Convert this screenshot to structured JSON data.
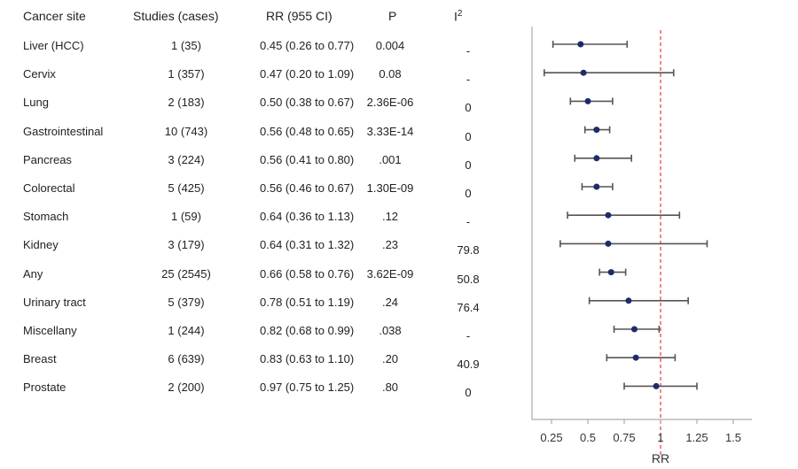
{
  "headers": {
    "site": "Cancer site",
    "studies": "Studies (cases)",
    "rr": "RR (955 CI)",
    "p": "P",
    "i2": "I",
    "i2_sup": "2"
  },
  "rows": [
    {
      "site": "Liver (HCC)",
      "studies": "1 (35)",
      "rr_ci": "0.45 (0.26 to 0.77)",
      "p": "0.004",
      "i2": "-"
    },
    {
      "site": "Cervix",
      "studies": "1 (357)",
      "rr_ci": "0.47 (0.20 to 1.09)",
      "p": "0.08",
      "i2": "-"
    },
    {
      "site": "Lung",
      "studies": "2 (183)",
      "rr_ci": "0.50 (0.38 to 0.67)",
      "p": "2.36E-06",
      "i2": "0"
    },
    {
      "site": "Gastrointestinal",
      "studies": "10 (743)",
      "rr_ci": "0.56 (0.48 to 0.65)",
      "p": "3.33E-14",
      "i2": "0"
    },
    {
      "site": "Pancreas",
      "studies": "3 (224)",
      "rr_ci": "0.56 (0.41 to 0.80)",
      "p": ".001",
      "i2": "0"
    },
    {
      "site": "Colorectal",
      "studies": "5 (425)",
      "rr_ci": "0.56 (0.46 to 0.67)",
      "p": "1.30E-09",
      "i2": "0"
    },
    {
      "site": "Stomach",
      "studies": "1 (59)",
      "rr_ci": "0.64 (0.36 to 1.13)",
      "p": ".12",
      "i2": "-"
    },
    {
      "site": "Kidney",
      "studies": "3 (179)",
      "rr_ci": "0.64 (0.31 to 1.32)",
      "p": ".23",
      "i2": "79.8"
    },
    {
      "site": "Any",
      "studies": "25 (2545)",
      "rr_ci": "0.66 (0.58 to 0.76)",
      "p": "3.62E-09",
      "i2": "50.8"
    },
    {
      "site": "Urinary tract",
      "studies": "5 (379)",
      "rr_ci": "0.78 (0.51 to 1.19)",
      "p": ".24",
      "i2": "76.4"
    },
    {
      "site": "Miscellany",
      "studies": "1 (244)",
      "rr_ci": "0.82 (0.68 to 0.99)",
      "p": ".038",
      "i2": "-"
    },
    {
      "site": "Breast",
      "studies": "6 (639)",
      "rr_ci": "0.83 (0.63 to 1.10)",
      "p": ".20",
      "i2": "40.9"
    },
    {
      "site": "Prostate",
      "studies": "2 (200)",
      "rr_ci": "0.97 (0.75 to 1.25)",
      "p": ".80",
      "i2": "0"
    }
  ],
  "chart_data": {
    "type": "forest",
    "xlabel": "RR",
    "xlim": [
      0.1,
      1.6
    ],
    "xticks": [
      0.25,
      0.5,
      0.75,
      1,
      1.25,
      1.5
    ],
    "xtick_labels": [
      "0.25",
      "0.5",
      "0.75",
      "1",
      "1.25",
      "1.5"
    ],
    "reference_line": 1,
    "categories": [
      "Liver (HCC)",
      "Cervix",
      "Lung",
      "Gastrointestinal",
      "Pancreas",
      "Colorectal",
      "Stomach",
      "Kidney",
      "Any",
      "Urinary tract",
      "Miscellany",
      "Breast",
      "Prostate"
    ],
    "estimates": [
      0.45,
      0.47,
      0.5,
      0.56,
      0.56,
      0.56,
      0.64,
      0.64,
      0.66,
      0.78,
      0.82,
      0.83,
      0.97
    ],
    "lower": [
      0.26,
      0.2,
      0.38,
      0.48,
      0.41,
      0.46,
      0.36,
      0.31,
      0.58,
      0.51,
      0.68,
      0.63,
      0.75
    ],
    "upper": [
      0.77,
      1.09,
      0.67,
      0.65,
      0.8,
      0.67,
      1.13,
      1.32,
      0.76,
      1.19,
      0.99,
      1.1,
      1.25
    ],
    "colors": {
      "point": "#1f2a6b",
      "whisker": "#555555",
      "reference": "#e83a3a",
      "axis": "#999999"
    }
  }
}
